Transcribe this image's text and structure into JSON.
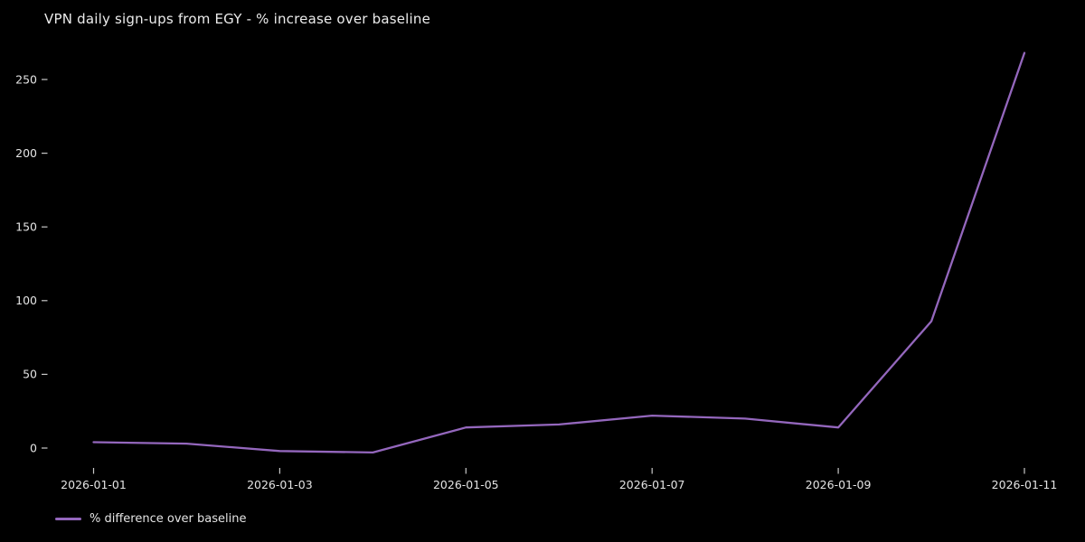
{
  "title": "VPN daily sign-ups from EGY - % increase over baseline",
  "legend": {
    "label": "% difference over baseline"
  },
  "colors": {
    "background": "#000000",
    "text": "#e4e4e4",
    "tick": "#c8c8c8",
    "line": "#9467bd"
  },
  "chart_data": {
    "type": "line",
    "title": "VPN daily sign-ups from EGY - % increase over baseline",
    "x": [
      "2026-01-01",
      "2026-01-02",
      "2026-01-03",
      "2026-01-04",
      "2026-01-05",
      "2026-01-06",
      "2026-01-07",
      "2026-01-08",
      "2026-01-09",
      "2026-01-10",
      "2026-01-11"
    ],
    "series": [
      {
        "name": "% difference over baseline",
        "color": "#9467bd",
        "values": [
          4,
          3,
          -2,
          -3,
          14,
          16,
          22,
          20,
          14,
          86,
          268
        ]
      }
    ],
    "xticks": [
      "2026-01-01",
      "2026-01-03",
      "2026-01-05",
      "2026-01-07",
      "2026-01-09",
      "2026-01-11"
    ],
    "yticks": [
      0,
      50,
      100,
      150,
      200,
      250
    ],
    "ylim": [
      -18,
      282
    ],
    "xlabel": "",
    "ylabel": "",
    "grid": false,
    "background": "black",
    "legend_position": "bottom-left"
  }
}
